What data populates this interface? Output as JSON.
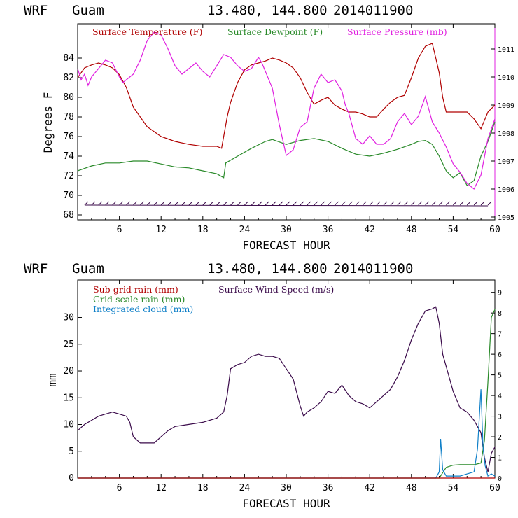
{
  "header": {
    "model": "WRF",
    "location": "Guam",
    "coords": "13.480, 144.800",
    "init": "2014011900"
  },
  "colors": {
    "temp": "#b00000",
    "dew": "#2a8a2a",
    "pres": "#e020e0",
    "wind": "#3a0a4a",
    "subgrid": "#b00000",
    "grid": "#2a8a2a",
    "cloud": "#1080c8"
  },
  "chart_data": [
    {
      "type": "line",
      "xlabel": "FORECAST HOUR",
      "ylabel": "Degrees F",
      "xlim": [
        0,
        60
      ],
      "ylim": [
        67.5,
        87.5
      ],
      "y2lim": [
        1004.9,
        1011.9
      ],
      "xticks": [
        "6",
        "12",
        "18",
        "24",
        "30",
        "36",
        "42",
        "48",
        "54",
        "60"
      ],
      "yticks": [
        "68",
        "70",
        "72",
        "74",
        "76",
        "78",
        "80",
        "82",
        "84"
      ],
      "y2ticks": [
        "1005",
        "1006",
        "1007",
        "1008",
        "1009",
        "1010",
        "1011"
      ],
      "legend": [
        "Surface Temperature (F)",
        "Surface Dewpoint (F)",
        "Surface Pressure (mb)"
      ],
      "series": [
        {
          "name": "Surface Temperature (F)",
          "axis": "left",
          "x": [
            0,
            1,
            2,
            3,
            4,
            5,
            6,
            7,
            7.5,
            8,
            9,
            10,
            11,
            12,
            14,
            16,
            18,
            20,
            20.7,
            21,
            21.5,
            22,
            23,
            24,
            25,
            26,
            27,
            28,
            29,
            30,
            31,
            32,
            33,
            34,
            35,
            36,
            37,
            38,
            39,
            40,
            41,
            42,
            43,
            44,
            45,
            46,
            47,
            48,
            49,
            50,
            51,
            51.5,
            52,
            52.5,
            53,
            54,
            55,
            56,
            57,
            58,
            59,
            60
          ],
          "y": [
            82,
            83,
            83.3,
            83.5,
            83.3,
            83,
            82.3,
            81,
            80,
            79,
            78,
            77,
            76.5,
            76,
            75.5,
            75.2,
            75,
            75,
            74.8,
            76,
            78,
            79.5,
            81.5,
            82.8,
            83.3,
            83.5,
            83.7,
            84,
            83.8,
            83.5,
            83,
            82,
            80.5,
            79.3,
            79.7,
            80,
            79.2,
            78.8,
            78.5,
            78.5,
            78.3,
            78,
            78,
            78.8,
            79.5,
            80,
            80.2,
            82,
            84,
            85.2,
            85.5,
            84,
            82.5,
            80,
            78.5,
            78.5,
            78.5,
            78.5,
            77.8,
            76.8,
            78.5,
            79.2
          ]
        },
        {
          "name": "Surface Dewpoint (F)",
          "axis": "left",
          "x": [
            0,
            2,
            4,
            6,
            8,
            10,
            12,
            14,
            16,
            18,
            20,
            21,
            21.3,
            23,
            25,
            27,
            28,
            30,
            32,
            34,
            36,
            38,
            40,
            42,
            44,
            46,
            48,
            49,
            50,
            51,
            52,
            53,
            54,
            55,
            56,
            57,
            58,
            59,
            60
          ],
          "y": [
            72.5,
            73,
            73.3,
            73.3,
            73.5,
            73.5,
            73.2,
            72.9,
            72.8,
            72.5,
            72.2,
            71.8,
            73.3,
            74,
            74.8,
            75.5,
            75.7,
            75.2,
            75.6,
            75.8,
            75.5,
            74.8,
            74.2,
            74,
            74.3,
            74.7,
            75.2,
            75.5,
            75.6,
            75.2,
            74,
            72.5,
            71.8,
            72.3,
            71,
            71.5,
            74,
            75.5,
            77.5
          ]
        },
        {
          "name": "Surface Pressure (mb)",
          "axis": "right",
          "x": [
            0,
            0.5,
            1,
            1.5,
            2,
            3,
            4,
            5,
            6,
            6.5,
            7,
            8,
            9,
            10,
            11,
            12,
            13,
            14,
            15,
            16,
            17,
            18,
            19,
            20,
            21,
            22,
            23,
            24,
            25,
            26,
            26.5,
            27,
            28,
            29,
            30,
            31,
            32,
            33,
            34,
            35,
            36,
            37,
            38,
            38.5,
            39,
            40,
            41,
            42,
            43,
            44,
            45,
            46,
            47,
            48,
            49,
            50,
            51,
            52,
            53,
            54,
            55,
            56,
            57,
            58,
            59,
            60
          ],
          "y": [
            1010.3,
            1009.9,
            1010.1,
            1009.7,
            1010.0,
            1010.3,
            1010.6,
            1010.5,
            1010.0,
            1009.8,
            1009.9,
            1010.1,
            1010.6,
            1011.3,
            1011.6,
            1011.5,
            1011.0,
            1010.4,
            1010.1,
            1010.3,
            1010.5,
            1010.2,
            1010.0,
            1010.4,
            1010.8,
            1010.7,
            1010.4,
            1010.2,
            1010.3,
            1010.7,
            1010.5,
            1010.2,
            1009.6,
            1008.3,
            1007.2,
            1007.4,
            1008.2,
            1008.4,
            1009.6,
            1010.1,
            1009.8,
            1009.9,
            1009.5,
            1009.0,
            1008.7,
            1007.8,
            1007.6,
            1007.9,
            1007.6,
            1007.6,
            1007.8,
            1008.4,
            1008.7,
            1008.3,
            1008.6,
            1009.3,
            1008.4,
            1008.0,
            1007.5,
            1006.9,
            1006.6,
            1006.2,
            1006.0,
            1006.5,
            1007.8,
            1008.5
          ]
        },
        {
          "name": "Wind barbs",
          "axis": "left",
          "level": 69
        }
      ]
    },
    {
      "type": "line",
      "xlabel": "FORECAST HOUR",
      "ylabel": "mm",
      "xlim": [
        0,
        60
      ],
      "ylim": [
        0,
        37
      ],
      "y2lim": [
        0,
        9.6
      ],
      "xticks": [
        "6",
        "12",
        "18",
        "24",
        "30",
        "36",
        "42",
        "48",
        "54",
        "60"
      ],
      "yticks": [
        "0",
        "5",
        "10",
        "15",
        "20",
        "25",
        "30"
      ],
      "y2ticks": [
        "0",
        "1",
        "2",
        "3",
        "4",
        "5",
        "6",
        "7",
        "8",
        "9"
      ],
      "legend": [
        "Sub-grid rain (mm)",
        "Grid-scale rain (mm)",
        "Integrated cloud (mm)",
        "Surface Wind Speed (m/s)"
      ],
      "series": [
        {
          "name": "Surface Wind Speed (m/s)",
          "axis": "right",
          "x": [
            0,
            1,
            2,
            3,
            4,
            5,
            6,
            7,
            7.5,
            8,
            9,
            10,
            11,
            12,
            13,
            14,
            16,
            18,
            20,
            21,
            21.5,
            22,
            23,
            24,
            25,
            26,
            27,
            28,
            29,
            30,
            31,
            32,
            32.5,
            33,
            34,
            35,
            36,
            37,
            38,
            39,
            40,
            41,
            42,
            43,
            44,
            45,
            46,
            47,
            48,
            49,
            50,
            51,
            51.5,
            52,
            52.5,
            53,
            54,
            55,
            56,
            57,
            58,
            58.5,
            59,
            59.5,
            60
          ],
          "y": [
            2.3,
            2.6,
            2.8,
            3.0,
            3.1,
            3.2,
            3.1,
            3.0,
            2.7,
            2.0,
            1.7,
            1.7,
            1.7,
            2.0,
            2.3,
            2.5,
            2.6,
            2.7,
            2.9,
            3.2,
            4.0,
            5.3,
            5.5,
            5.6,
            5.9,
            6.0,
            5.9,
            5.9,
            5.8,
            5.3,
            4.8,
            3.5,
            3.0,
            3.2,
            3.4,
            3.7,
            4.2,
            4.1,
            4.5,
            4.0,
            3.7,
            3.6,
            3.4,
            3.7,
            4.0,
            4.3,
            4.9,
            5.7,
            6.7,
            7.5,
            8.1,
            8.2,
            8.3,
            7.5,
            6.0,
            5.4,
            4.2,
            3.4,
            3.2,
            2.8,
            2.2,
            1.0,
            0.3,
            1.2,
            1.5
          ]
        },
        {
          "name": "Grid-scale rain (mm)",
          "axis": "left",
          "x": [
            0,
            52,
            52.5,
            53,
            54,
            55,
            57,
            58,
            58.5,
            59,
            59.5,
            60
          ],
          "y": [
            0,
            0,
            1,
            2,
            2.4,
            2.5,
            2.5,
            2.8,
            7,
            18,
            30,
            31.5
          ]
        },
        {
          "name": "Integrated cloud (mm)",
          "axis": "right",
          "x": [
            0,
            51.5,
            52,
            52.2,
            52.5,
            53,
            54,
            55,
            56,
            57,
            57.5,
            58,
            58.3,
            58.6,
            59,
            59.5,
            60
          ],
          "y": [
            0,
            0,
            0.3,
            1.9,
            0.4,
            0.1,
            0.1,
            0.1,
            0.2,
            0.3,
            1.4,
            4.3,
            1.5,
            0.6,
            0.1,
            0.2,
            0.1
          ]
        },
        {
          "name": "Sub-grid rain (mm)",
          "axis": "left",
          "x": [
            0,
            60
          ],
          "y": [
            0,
            0
          ]
        }
      ]
    }
  ]
}
